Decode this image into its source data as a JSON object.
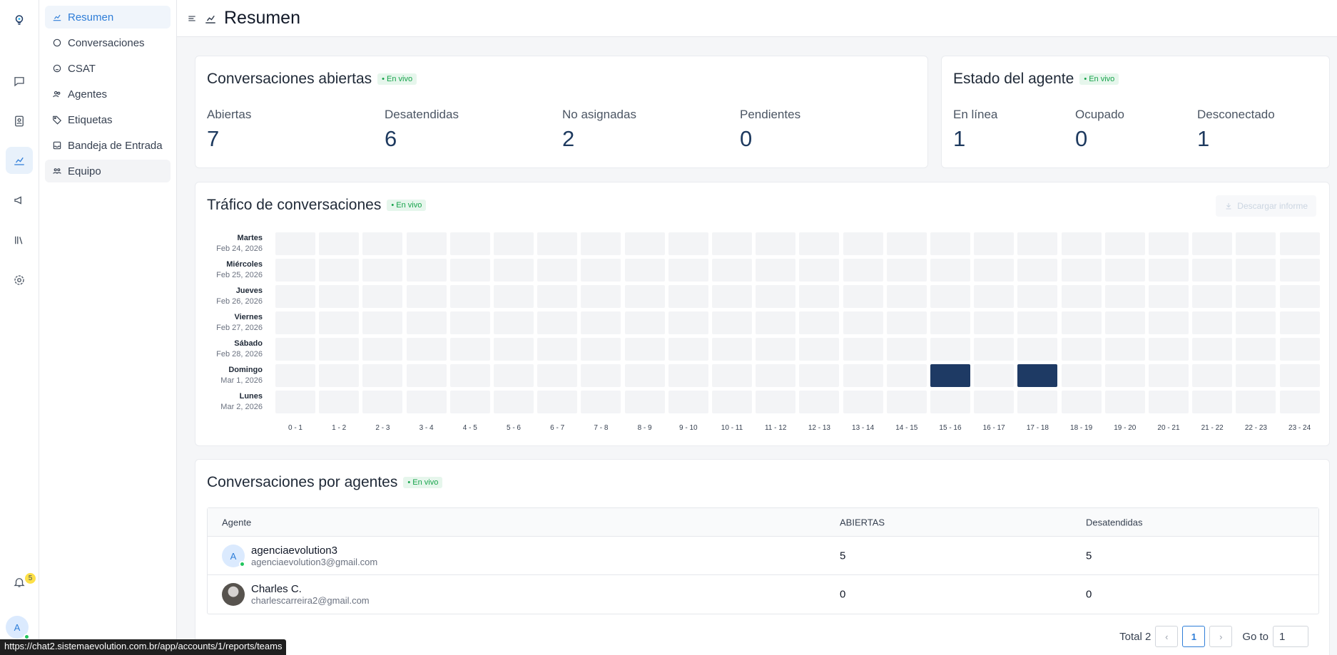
{
  "nav_rail": {
    "notification_count": "5",
    "user_initial": "A"
  },
  "subnav": {
    "items": [
      {
        "label": "Resumen",
        "icon": "chart-line-icon"
      },
      {
        "label": "Conversaciones",
        "icon": "chat-bubble-icon"
      },
      {
        "label": "CSAT",
        "icon": "smiley-icon"
      },
      {
        "label": "Agentes",
        "icon": "people-icon"
      },
      {
        "label": "Etiquetas",
        "icon": "tag-icon"
      },
      {
        "label": "Bandeja de Entrada",
        "icon": "inbox-icon"
      },
      {
        "label": "Equipo",
        "icon": "team-icon"
      }
    ]
  },
  "header": {
    "title": "Resumen"
  },
  "open_conversations": {
    "title": "Conversaciones abiertas",
    "live": "• En vivo",
    "metrics": [
      {
        "label": "Abiertas",
        "value": "7"
      },
      {
        "label": "Desatendidas",
        "value": "6"
      },
      {
        "label": "No asignadas",
        "value": "2"
      },
      {
        "label": "Pendientes",
        "value": "0"
      }
    ]
  },
  "agent_status": {
    "title": "Estado del agente",
    "live": "• En vivo",
    "metrics": [
      {
        "label": "En línea",
        "value": "1"
      },
      {
        "label": "Ocupado",
        "value": "0"
      },
      {
        "label": "Desconectado",
        "value": "1"
      }
    ]
  },
  "traffic": {
    "title": "Tráfico de conversaciones",
    "live": "• En vivo",
    "download_label": "Descargar informe",
    "rows": [
      {
        "day": "Martes",
        "date": "Feb 24, 2026"
      },
      {
        "day": "Miércoles",
        "date": "Feb 25, 2026"
      },
      {
        "day": "Jueves",
        "date": "Feb 26, 2026"
      },
      {
        "day": "Viernes",
        "date": "Feb 27, 2026"
      },
      {
        "day": "Sábado",
        "date": "Feb 28, 2026"
      },
      {
        "day": "Domingo",
        "date": "Mar 1, 2026"
      },
      {
        "day": "Lunes",
        "date": "Mar 2, 2026"
      }
    ],
    "hours": [
      "0 - 1",
      "1 - 2",
      "2 - 3",
      "3 - 4",
      "4 - 5",
      "5 - 6",
      "6 - 7",
      "7 - 8",
      "8 - 9",
      "9 - 10",
      "10 - 11",
      "11 - 12",
      "12 - 13",
      "13 - 14",
      "14 - 15",
      "15 - 16",
      "16 - 17",
      "17 - 18",
      "18 - 19",
      "19 - 20",
      "20 - 21",
      "21 - 22",
      "22 - 23",
      "23 - 24"
    ],
    "active_cells": [
      {
        "row": 5,
        "col": 15
      },
      {
        "row": 5,
        "col": 17
      }
    ]
  },
  "by_agents": {
    "title": "Conversaciones por agentes",
    "live": "• En vivo",
    "columns": [
      "Agente",
      "ABIERTAS",
      "Desatendidas"
    ],
    "rows": [
      {
        "name": "agenciaevolution3",
        "email": "agenciaevolution3@gmail.com",
        "initial": "A",
        "open": "5",
        "unattended": "5"
      },
      {
        "name": "Charles C.",
        "email": "charlescarreira2@gmail.com",
        "initial": "",
        "open": "0",
        "unattended": "0"
      }
    ]
  },
  "pagination": {
    "total": "Total 2",
    "current": "1",
    "goto_label": "Go to",
    "goto_value": "1"
  },
  "status_url": "https://chat2.sistemaevolution.com.br/app/accounts/1/reports/teams",
  "colors": {
    "accent": "#2f7ed8",
    "heat": "#1e3a64",
    "live": "#16a34a"
  }
}
